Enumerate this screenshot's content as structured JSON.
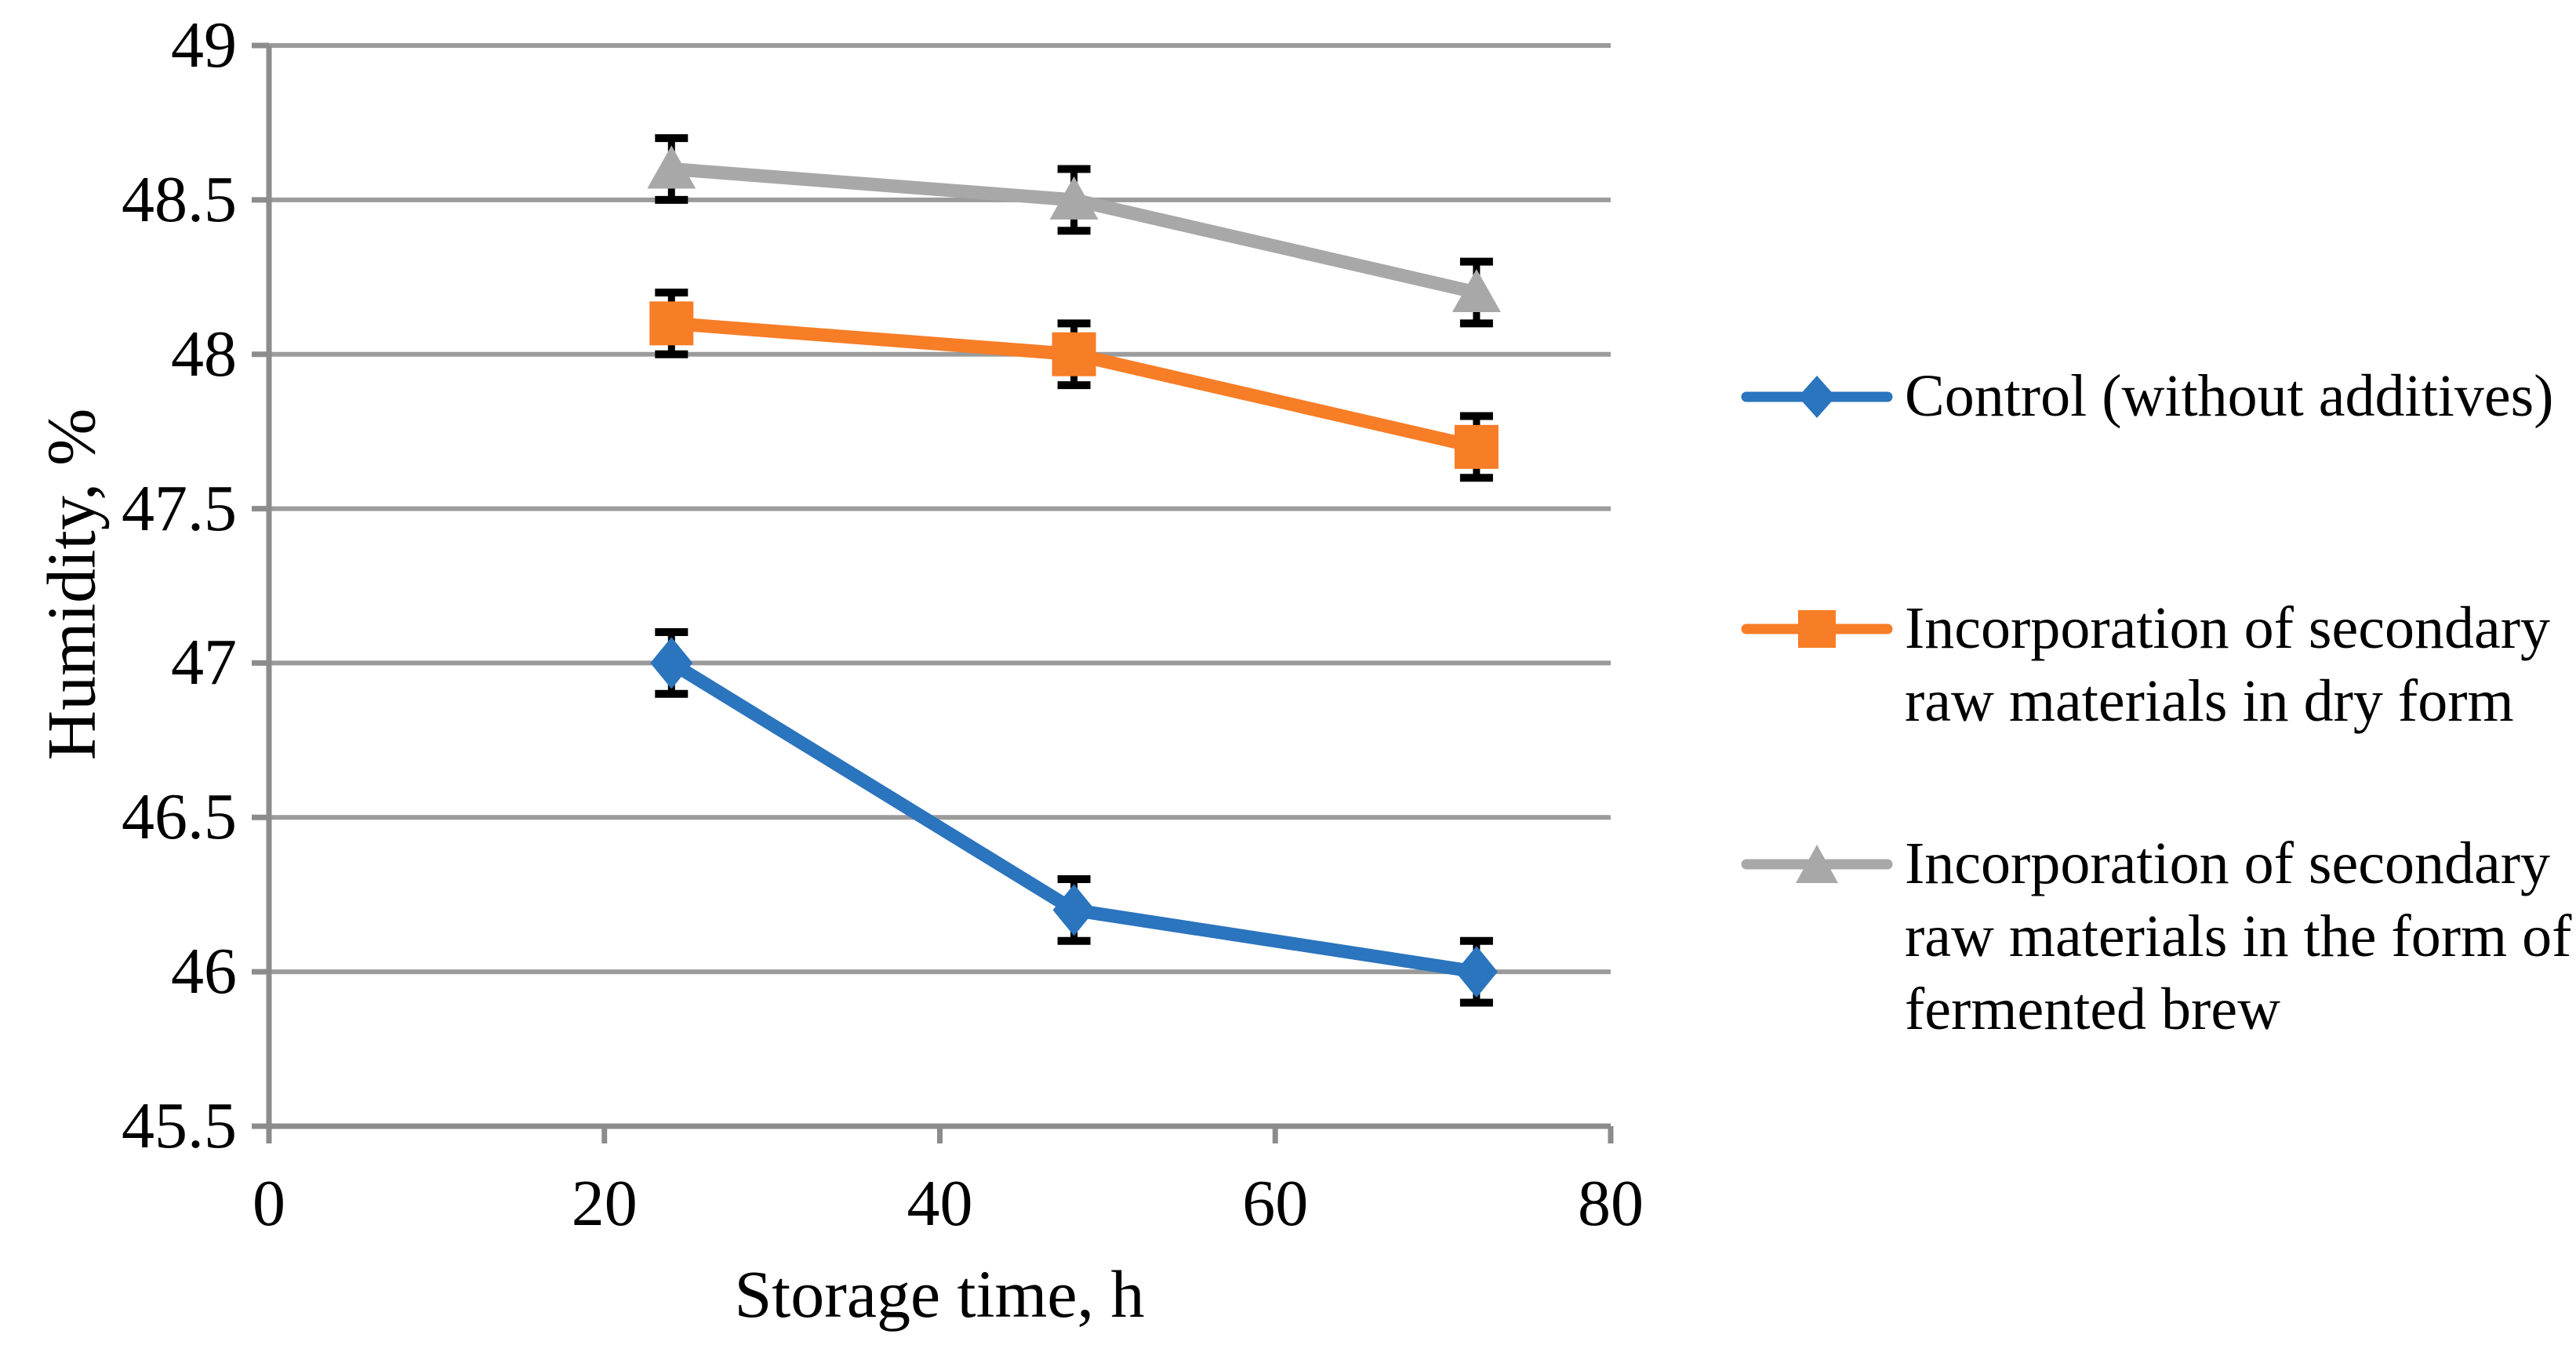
{
  "chart_data": {
    "type": "line",
    "x": [
      24,
      48,
      72
    ],
    "series": [
      {
        "name": "Control (without additives)",
        "marker": "diamond",
        "color": "#2B74BE",
        "values": [
          47.0,
          46.2,
          46.0
        ],
        "error": 0.1
      },
      {
        "name": "Incorporation of secondary raw materials in dry form",
        "marker": "square",
        "color": "#F87D27",
        "values": [
          48.1,
          48.0,
          47.7
        ],
        "error": 0.1
      },
      {
        "name": "Incorporation of secondary raw materials in the form of fermented brew",
        "marker": "triangle",
        "color": "#A8A8A8",
        "values": [
          48.6,
          48.5,
          48.2
        ],
        "error": 0.1
      }
    ],
    "xlabel": "Storage time, h",
    "ylabel": "Humidity, %",
    "x_ticks": [
      0,
      20,
      40,
      60,
      80
    ],
    "y_ticks": [
      45.5,
      46,
      46.5,
      47,
      47.5,
      48,
      48.5,
      49
    ],
    "xlim": [
      0,
      80
    ],
    "ylim": [
      45.5,
      49
    ],
    "grid": "horizontal",
    "legend_position": "right",
    "colors": {
      "gridline": "#9B9B9B",
      "axis": "#8C8C8C",
      "error_bar": "#000000",
      "text": "#000000",
      "background": "#FFFFFF"
    }
  }
}
